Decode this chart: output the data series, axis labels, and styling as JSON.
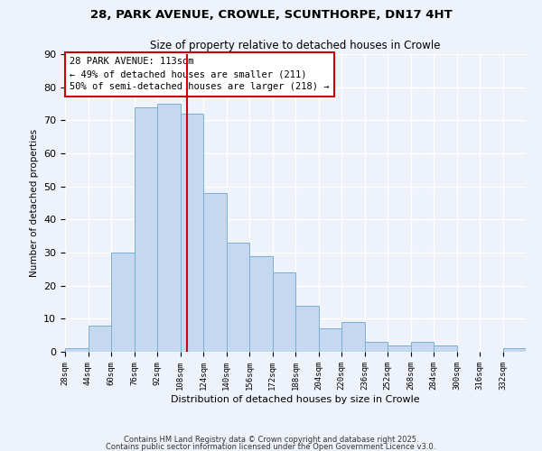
{
  "title": "28, PARK AVENUE, CROWLE, SCUNTHORPE, DN17 4HT",
  "subtitle": "Size of property relative to detached houses in Crowle",
  "xlabel": "Distribution of detached houses by size in Crowle",
  "ylabel": "Number of detached properties",
  "bins": [
    28,
    44,
    60,
    76,
    92,
    108,
    124,
    140,
    156,
    172,
    188,
    204,
    220,
    236,
    252,
    268,
    284,
    300,
    316,
    332,
    348
  ],
  "counts": [
    1,
    8,
    30,
    74,
    75,
    72,
    48,
    33,
    29,
    24,
    14,
    7,
    9,
    3,
    2,
    3,
    2,
    0,
    0,
    1
  ],
  "bar_color": "#c5d8f0",
  "bar_edge_color": "#7bafd4",
  "vline_x": 113,
  "vline_color": "#cc0000",
  "ylim": [
    0,
    90
  ],
  "yticks": [
    0,
    10,
    20,
    30,
    40,
    50,
    60,
    70,
    80,
    90
  ],
  "annotation_box_text": "28 PARK AVENUE: 113sqm\n← 49% of detached houses are smaller (211)\n50% of semi-detached houses are larger (218) →",
  "footer1": "Contains HM Land Registry data © Crown copyright and database right 2025.",
  "footer2": "Contains public sector information licensed under the Open Government Licence v3.0.",
  "bg_color": "#eef3fb",
  "grid_color": "#ffffff"
}
